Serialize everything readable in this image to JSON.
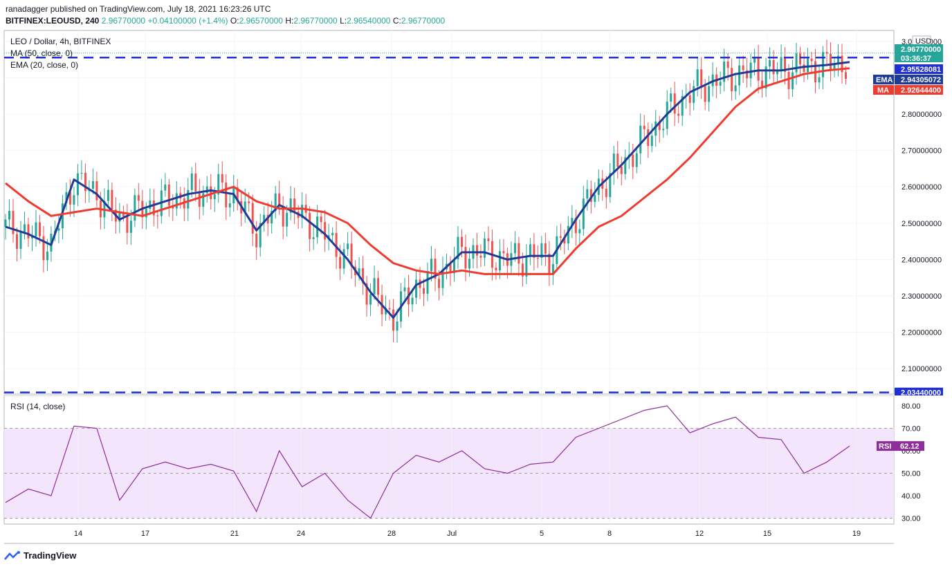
{
  "header": {
    "publisher_line": "ranadagger published on TradingView.com, July 18, 2021 16:23:26 UTC",
    "symbol": "BITFINEX:LEOUSD, 240",
    "last": "2.96770000",
    "change": "+0.04100000 (+1.4%)",
    "open_label": "O:",
    "open": "2.96570000",
    "high_label": "H:",
    "high": "2.96770000",
    "low_label": "L:",
    "low": "2.96540000",
    "close_label": "C:",
    "close": "2.96770000"
  },
  "legend": {
    "pair": "LEO / Dollar, 4h, BITFINEX",
    "ma": "MA (50, close, 0)",
    "ema": "EMA (20, close, 0)",
    "rsi": "RSI (14, close)"
  },
  "price_axis": {
    "currency": "USD",
    "ticks": [
      "3.00000000",
      "2.90000000",
      "2.80000000",
      "2.70000000",
      "2.60000000",
      "2.50000000",
      "2.40000000",
      "2.30000000",
      "2.20000000",
      "2.10000000"
    ],
    "tags": {
      "last": "2.96770000",
      "countdown": "03:36:37",
      "level_high": "2.95528081",
      "ema_label": "EMA",
      "ema": "2.94305072",
      "ma_label": "MA",
      "ma": "2.92644400",
      "level_low": "2.03440000"
    }
  },
  "rsi_axis": {
    "ticks": [
      "80.00",
      "70.00",
      "60.00",
      "50.00",
      "40.00",
      "30.00"
    ],
    "tag_label": "RSI",
    "tag_value": "62.12"
  },
  "time_axis": [
    "14",
    "17",
    "21",
    "24",
    "28",
    "Jul",
    "5",
    "8",
    "12",
    "15",
    "19"
  ],
  "footer": {
    "brand": "TradingView"
  },
  "colors": {
    "up": "#26a69a",
    "down": "#ef5350",
    "ema": "#1e3c96",
    "ma": "#ef3c30",
    "level": "#1f2fd6",
    "rsi_line": "#8e2e9c",
    "rsi_band": "#f3e5fb"
  },
  "chart_data": {
    "type": "line",
    "title": "LEO / Dollar, 4h, BITFINEX",
    "ylim": [
      2.03,
      3.03
    ],
    "grid": true,
    "levels": [
      2.95528081,
      2.0344
    ],
    "series": [
      {
        "name": "EMA (20, close, 0)",
        "x": [
          "2021-06-11",
          "2021-06-12",
          "2021-06-13",
          "2021-06-14",
          "2021-06-15",
          "2021-06-16",
          "2021-06-17",
          "2021-06-18",
          "2021-06-19",
          "2021-06-20",
          "2021-06-21",
          "2021-06-22",
          "2021-06-23",
          "2021-06-24",
          "2021-06-25",
          "2021-06-26",
          "2021-06-27",
          "2021-06-28",
          "2021-06-29",
          "2021-06-30",
          "2021-07-01",
          "2021-07-02",
          "2021-07-03",
          "2021-07-04",
          "2021-07-05",
          "2021-07-06",
          "2021-07-07",
          "2021-07-08",
          "2021-07-09",
          "2021-07-10",
          "2021-07-11",
          "2021-07-12",
          "2021-07-13",
          "2021-07-14",
          "2021-07-15",
          "2021-07-16",
          "2021-07-17",
          "2021-07-18"
        ],
        "values": [
          2.49,
          2.47,
          2.44,
          2.62,
          2.58,
          2.51,
          2.54,
          2.56,
          2.58,
          2.59,
          2.58,
          2.48,
          2.55,
          2.52,
          2.47,
          2.4,
          2.31,
          2.24,
          2.33,
          2.36,
          2.42,
          2.42,
          2.4,
          2.41,
          2.41,
          2.51,
          2.6,
          2.66,
          2.73,
          2.8,
          2.86,
          2.89,
          2.91,
          2.92,
          2.92,
          2.93,
          2.935,
          2.943
        ]
      },
      {
        "name": "MA (50, close, 0)",
        "x": [
          "2021-06-11",
          "2021-06-12",
          "2021-06-13",
          "2021-06-14",
          "2021-06-15",
          "2021-06-16",
          "2021-06-17",
          "2021-06-18",
          "2021-06-19",
          "2021-06-20",
          "2021-06-21",
          "2021-06-22",
          "2021-06-23",
          "2021-06-24",
          "2021-06-25",
          "2021-06-26",
          "2021-06-27",
          "2021-06-28",
          "2021-06-29",
          "2021-06-30",
          "2021-07-01",
          "2021-07-02",
          "2021-07-03",
          "2021-07-04",
          "2021-07-05",
          "2021-07-06",
          "2021-07-07",
          "2021-07-08",
          "2021-07-09",
          "2021-07-10",
          "2021-07-11",
          "2021-07-12",
          "2021-07-13",
          "2021-07-14",
          "2021-07-15",
          "2021-07-16",
          "2021-07-17",
          "2021-07-18"
        ],
        "values": [
          2.61,
          2.56,
          2.52,
          2.53,
          2.54,
          2.53,
          2.52,
          2.54,
          2.56,
          2.58,
          2.6,
          2.56,
          2.54,
          2.54,
          2.53,
          2.5,
          2.44,
          2.39,
          2.37,
          2.36,
          2.37,
          2.36,
          2.36,
          2.36,
          2.36,
          2.43,
          2.49,
          2.52,
          2.57,
          2.62,
          2.68,
          2.75,
          2.82,
          2.87,
          2.89,
          2.91,
          2.92,
          2.926
        ]
      }
    ],
    "rsi": {
      "name": "RSI (14, close)",
      "ylim": [
        28,
        84
      ],
      "band": [
        30,
        70
      ],
      "x": [
        "2021-06-11",
        "2021-06-12",
        "2021-06-13",
        "2021-06-14",
        "2021-06-15",
        "2021-06-16",
        "2021-06-17",
        "2021-06-18",
        "2021-06-19",
        "2021-06-20",
        "2021-06-21",
        "2021-06-22",
        "2021-06-23",
        "2021-06-24",
        "2021-06-25",
        "2021-06-26",
        "2021-06-27",
        "2021-06-28",
        "2021-06-29",
        "2021-06-30",
        "2021-07-01",
        "2021-07-02",
        "2021-07-03",
        "2021-07-04",
        "2021-07-05",
        "2021-07-06",
        "2021-07-07",
        "2021-07-08",
        "2021-07-09",
        "2021-07-10",
        "2021-07-11",
        "2021-07-12",
        "2021-07-13",
        "2021-07-14",
        "2021-07-15",
        "2021-07-16",
        "2021-07-17",
        "2021-07-18"
      ],
      "values": [
        37,
        43,
        40,
        71,
        70,
        38,
        52,
        55,
        52,
        54,
        51,
        33,
        60,
        44,
        50,
        38,
        30,
        50,
        58,
        55,
        60,
        52,
        50,
        54,
        55,
        66,
        70,
        74,
        78,
        80,
        68,
        72,
        75,
        66,
        65,
        50,
        55,
        62.12
      ]
    }
  }
}
